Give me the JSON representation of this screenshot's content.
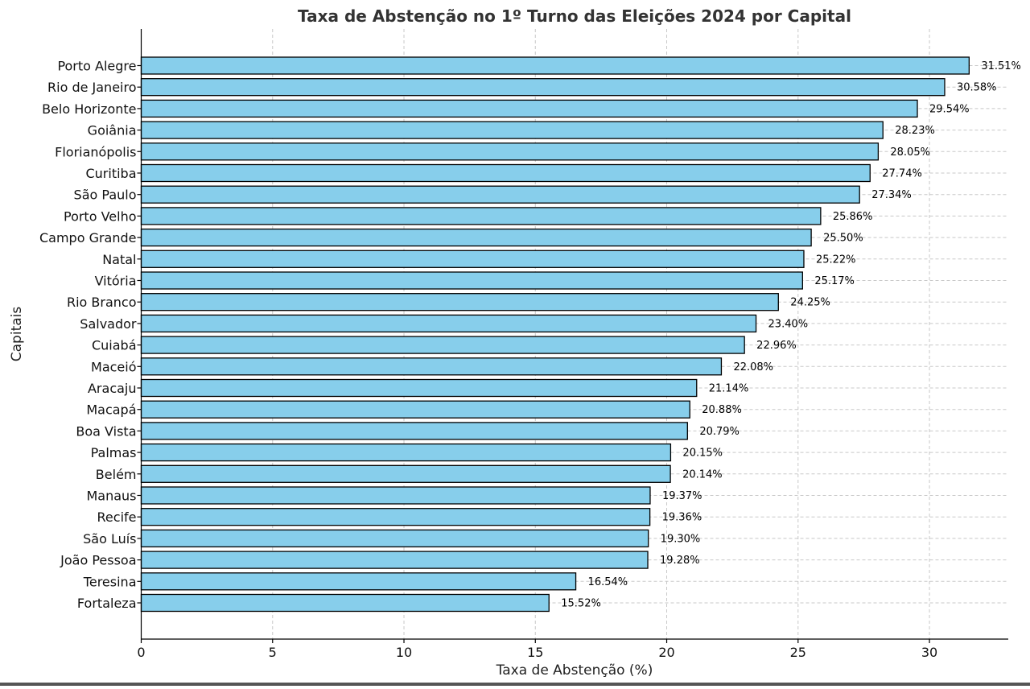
{
  "chart_data": {
    "type": "bar",
    "orientation": "horizontal",
    "title": "Taxa de Abstenção no 1º Turno das Eleições 2024 por Capital",
    "xlabel": "Taxa de Abstenção (%)",
    "ylabel": "Capitais",
    "xlim": [
      0,
      33
    ],
    "xticks": [
      0,
      5,
      10,
      15,
      20,
      25,
      30
    ],
    "grid": true,
    "bar_color": "#87ceeb",
    "bar_edge_color": "#000000",
    "categories": [
      "Porto Alegre",
      "Rio de Janeiro",
      "Belo Horizonte",
      "Goiânia",
      "Florianópolis",
      "Curitiba",
      "São Paulo",
      "Porto Velho",
      "Campo Grande",
      "Natal",
      "Vitória",
      "Rio Branco",
      "Salvador",
      "Cuiabá",
      "Maceió",
      "Aracaju",
      "Macapá",
      "Boa Vista",
      "Palmas",
      "Belém",
      "Manaus",
      "Recife",
      "São Luís",
      "João Pessoa",
      "Teresina",
      "Fortaleza"
    ],
    "values": [
      31.51,
      30.58,
      29.54,
      28.23,
      28.05,
      27.74,
      27.34,
      25.86,
      25.5,
      25.22,
      25.17,
      24.25,
      23.4,
      22.96,
      22.08,
      21.14,
      20.88,
      20.79,
      20.15,
      20.14,
      19.37,
      19.36,
      19.3,
      19.28,
      16.54,
      15.52
    ],
    "data_labels": [
      "31.51%",
      "30.58%",
      "29.54%",
      "28.23%",
      "28.05%",
      "27.74%",
      "27.34%",
      "25.86%",
      "25.50%",
      "25.22%",
      "25.17%",
      "24.25%",
      "23.40%",
      "22.96%",
      "22.08%",
      "21.14%",
      "20.88%",
      "20.79%",
      "20.15%",
      "20.14%",
      "19.37%",
      "19.36%",
      "19.30%",
      "19.28%",
      "16.54%",
      "15.52%"
    ]
  }
}
